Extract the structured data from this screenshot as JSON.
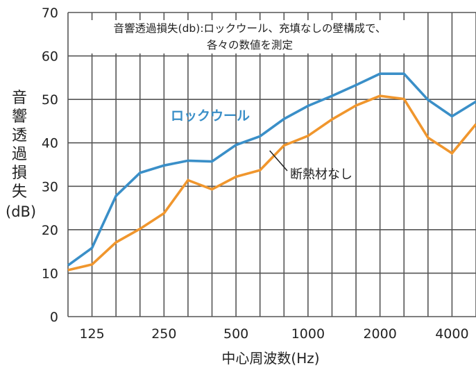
{
  "chart_data": {
    "type": "line",
    "title_lines": [
      "音響透過損失(db):ロックウール、充填なしの壁構成で、",
      "各々の数値を測定"
    ],
    "ylabel_chars": [
      "音",
      "響",
      "透",
      "過",
      "損",
      "失"
    ],
    "ylabel_unit": "(dB)",
    "xlabel": "中心周波数(Hz)",
    "ylim": [
      0,
      70
    ],
    "yticks": [
      0,
      10,
      20,
      30,
      40,
      50,
      60,
      70
    ],
    "x": [
      100,
      125,
      160,
      200,
      250,
      315,
      400,
      500,
      630,
      800,
      1000,
      1250,
      1600,
      2000,
      2500,
      3150,
      4000,
      5000
    ],
    "xtick_labels": [
      {
        "x": 125,
        "label": "125"
      },
      {
        "x": 250,
        "label": "250"
      },
      {
        "x": 500,
        "label": "500"
      },
      {
        "x": 1000,
        "label": "1000"
      },
      {
        "x": 2000,
        "label": "2000"
      },
      {
        "x": 4000,
        "label": "4000"
      }
    ],
    "grid": true,
    "series": [
      {
        "name": "ロックウール",
        "color": "#3a8fc8",
        "values": [
          11.8,
          15.8,
          27.8,
          33.1,
          34.8,
          35.9,
          35.7,
          39.5,
          41.5,
          45.5,
          48.5,
          50.8,
          53.3,
          55.9,
          55.9,
          49.9,
          46.1,
          49.5
        ]
      },
      {
        "name": "断熱材なし",
        "color": "#f0962d",
        "values": [
          10.7,
          12.0,
          17.1,
          20.2,
          23.8,
          31.4,
          29.3,
          32.2,
          33.7,
          39.4,
          41.6,
          45.4,
          48.6,
          50.8,
          50.1,
          41.2,
          37.6,
          44.3
        ]
      }
    ]
  }
}
